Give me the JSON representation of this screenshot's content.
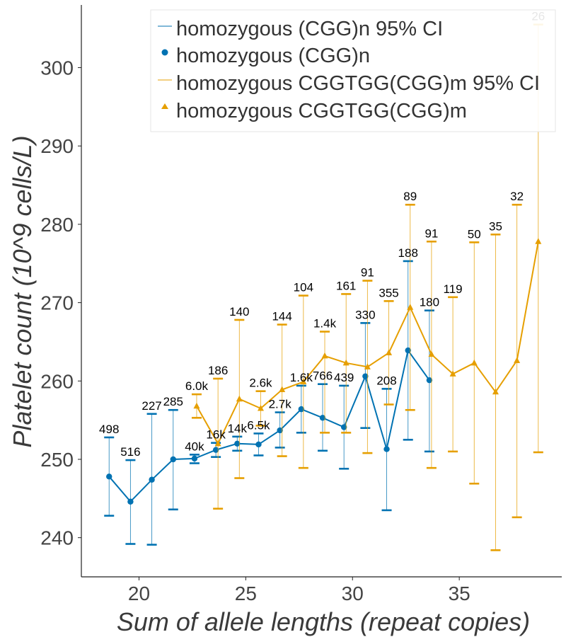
{
  "chart_data": {
    "type": "line",
    "xlabel": "Sum of allele lengths (repeat copies)",
    "ylabel": "Platelet count (10^9 cells/L)",
    "xlim": [
      17.3,
      39.8
    ],
    "ylim": [
      235,
      308
    ],
    "xticks": [
      20,
      25,
      30,
      35
    ],
    "yticks": [
      240,
      250,
      260,
      270,
      280,
      290,
      300
    ],
    "grid": false,
    "legend_position": "top-right",
    "legend": [
      "homozygous (CGG)n 95% CI",
      "homozygous (CGG)n",
      "homozygous CGGTGG(CGG)m 95% CI",
      "homozygous CGGTGG(CGG)m"
    ],
    "series": [
      {
        "name": "homozygous (CGG)n",
        "color": "#0072b2",
        "marker": "circle",
        "x": [
          18.6,
          19.6,
          20.6,
          21.6,
          22.6,
          23.6,
          24.6,
          25.6,
          26.6,
          27.6,
          28.6,
          29.6,
          30.6,
          31.6,
          32.6,
          33.6
        ],
        "y": [
          247.8,
          244.6,
          247.4,
          250.0,
          250.1,
          251.2,
          252.0,
          251.9,
          253.7,
          256.4,
          255.3,
          254.1,
          260.6,
          251.3,
          263.9,
          260.1
        ],
        "ci_low": [
          242.8,
          239.2,
          239.1,
          243.6,
          249.5,
          250.3,
          251.1,
          250.5,
          251.5,
          253.4,
          251.1,
          248.8,
          254.0,
          243.5,
          252.5,
          251.0
        ],
        "ci_high": [
          252.8,
          249.9,
          255.8,
          256.3,
          250.6,
          252.1,
          252.9,
          253.3,
          256.0,
          259.4,
          259.6,
          259.4,
          267.4,
          259.0,
          275.3,
          269.0
        ],
        "labels": [
          "498",
          "516",
          "227",
          "285",
          "40k",
          "16k",
          "14k",
          "6.5k",
          "2.7k",
          "1.6k",
          "766",
          "439",
          "330",
          "208",
          "188",
          "180"
        ]
      },
      {
        "name": "homozygous CGGTGG(CGG)m",
        "color": "#e69f00",
        "marker": "triangle",
        "x": [
          22.7,
          23.7,
          24.7,
          25.7,
          26.7,
          27.7,
          28.7,
          29.7,
          30.7,
          31.7,
          32.7,
          33.7,
          34.7,
          35.7,
          36.7,
          37.7,
          38.7
        ],
        "y": [
          256.8,
          252.0,
          257.7,
          256.5,
          258.9,
          259.9,
          263.2,
          262.3,
          261.8,
          263.6,
          269.4,
          263.4,
          260.9,
          262.3,
          258.6,
          262.6,
          277.8
        ],
        "ci_low": [
          255.3,
          243.7,
          247.6,
          254.3,
          250.4,
          248.9,
          253.4,
          253.4,
          250.8,
          257.0,
          256.3,
          248.9,
          251.0,
          246.9,
          238.4,
          242.6,
          250.9
        ],
        "ci_high": [
          258.3,
          260.3,
          267.8,
          258.7,
          267.2,
          270.9,
          266.3,
          271.1,
          272.8,
          270.2,
          282.5,
          277.8,
          270.7,
          277.7,
          278.7,
          282.5,
          305.5
        ],
        "labels": [
          "6.0k",
          "186",
          "140",
          "2.6k",
          "144",
          "104",
          "1.4k",
          "161",
          "91",
          "355",
          "89",
          "91",
          "119",
          "50",
          "35",
          "32",
          "26"
        ]
      }
    ]
  }
}
